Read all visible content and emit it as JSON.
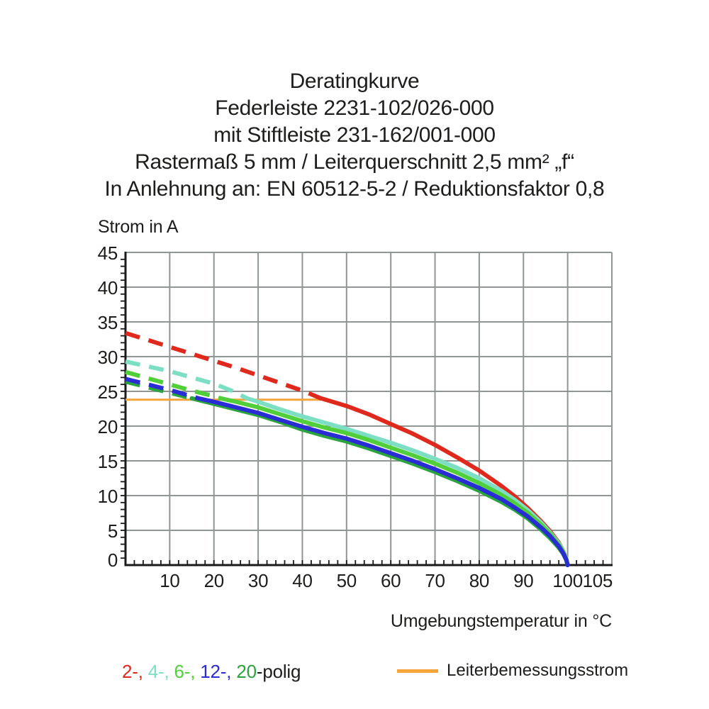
{
  "title": {
    "lines": [
      "Deratingkurve",
      "Federleiste 2231-102/026-000",
      "mit Stiftleiste 231-162/001-000",
      "Rastermaß 5 mm / Leiterquerschnitt 2,5 mm² „f“",
      "In Anlehnung an: EN 60512-5-2 / Reduktionsfaktor 0,8"
    ]
  },
  "legend": {
    "poles": {
      "parts": [
        {
          "text": "2-, ",
          "color": "#e0291d"
        },
        {
          "text": "4-, ",
          "color": "#7cdfc4"
        },
        {
          "text": "6-, ",
          "color": "#50cf3a"
        },
        {
          "text": "12-, ",
          "color": "#2a2cd6"
        },
        {
          "text": "20",
          "color": "#2ba33e"
        },
        {
          "text": "-polig",
          "color": "#1d1d1b"
        }
      ]
    },
    "rated": {
      "label": "Leiterbemessungsstrom",
      "color": "#f5a33b"
    }
  },
  "chart_data": {
    "type": "line",
    "title": "Deratingkurve",
    "xlabel": "Umgebungstemperatur in °C",
    "ylabel": "Strom in A",
    "xlim": [
      0,
      110
    ],
    "ylim": [
      0,
      45
    ],
    "grid": true,
    "grid_color": "#8f9694",
    "axis_color": "#1a1a1a",
    "x_ticks": [
      10,
      20,
      30,
      40,
      50,
      60,
      70,
      80,
      90,
      100,
      105
    ],
    "y_ticks": [
      0,
      5,
      10,
      15,
      20,
      25,
      30,
      35,
      40,
      45
    ],
    "x_grid": [
      10,
      20,
      30,
      40,
      50,
      60,
      70,
      80,
      90,
      100,
      110
    ],
    "y_grid": [
      5,
      10,
      15,
      20,
      25,
      30,
      35,
      40,
      45
    ],
    "x_minor_tick_step": 2,
    "y_minor_tick_step": 1,
    "rated_current_line": {
      "label": "Leiterbemessungsstrom",
      "current_a": 24,
      "y": 23.8,
      "x_from": 0,
      "x_to": 44.2,
      "color": "#f5a33b"
    },
    "series": [
      {
        "name": "2-polig",
        "color": "#e0291d",
        "dashed_until": 44.2,
        "points": [
          [
            0,
            33.4
          ],
          [
            5,
            32.4
          ],
          [
            10,
            31.4
          ],
          [
            15,
            30.4
          ],
          [
            20,
            29.4
          ],
          [
            25,
            28.4
          ],
          [
            30,
            27.3
          ],
          [
            35,
            26.2
          ],
          [
            40,
            25.1
          ],
          [
            44.2,
            24.0
          ],
          [
            50,
            22.9
          ],
          [
            55,
            21.7
          ],
          [
            60,
            20.3
          ],
          [
            65,
            18.9
          ],
          [
            70,
            17.3
          ],
          [
            75,
            15.5
          ],
          [
            80,
            13.6
          ],
          [
            85,
            11.4
          ],
          [
            88,
            9.9
          ],
          [
            91,
            8.2
          ],
          [
            94,
            6.3
          ],
          [
            96,
            4.9
          ],
          [
            98,
            3.2
          ],
          [
            99,
            2.0
          ],
          [
            99.7,
            0.9
          ],
          [
            100,
            0
          ]
        ]
      },
      {
        "name": "4-polig",
        "color": "#7cdfc4",
        "dashed_until": 27.5,
        "points": [
          [
            0,
            29.3
          ],
          [
            5,
            28.6
          ],
          [
            10,
            27.9
          ],
          [
            15,
            27.0
          ],
          [
            20,
            26.1
          ],
          [
            24,
            25.1
          ],
          [
            27.5,
            24.0
          ],
          [
            30,
            23.5
          ],
          [
            35,
            22.4
          ],
          [
            40,
            21.4
          ],
          [
            45,
            20.5
          ],
          [
            50,
            19.6
          ],
          [
            55,
            18.6
          ],
          [
            60,
            17.6
          ],
          [
            65,
            16.5
          ],
          [
            70,
            15.3
          ],
          [
            75,
            14.0
          ],
          [
            80,
            12.5
          ],
          [
            85,
            10.7
          ],
          [
            88,
            9.4
          ],
          [
            91,
            7.9
          ],
          [
            94,
            6.1
          ],
          [
            96,
            4.7
          ],
          [
            98,
            3.1
          ],
          [
            99,
            2.0
          ],
          [
            99.7,
            0.9
          ],
          [
            100,
            0
          ]
        ]
      },
      {
        "name": "6-polig",
        "color": "#50cf3a",
        "dashed_until": 21.5,
        "points": [
          [
            0,
            27.8
          ],
          [
            5,
            26.9
          ],
          [
            10,
            26.0
          ],
          [
            15,
            25.1
          ],
          [
            20,
            24.3
          ],
          [
            21.5,
            24.0
          ],
          [
            25,
            23.5
          ],
          [
            30,
            22.7
          ],
          [
            35,
            21.7
          ],
          [
            40,
            20.7
          ],
          [
            45,
            19.8
          ],
          [
            50,
            19.0
          ],
          [
            55,
            18.0
          ],
          [
            60,
            16.9
          ],
          [
            65,
            15.8
          ],
          [
            70,
            14.6
          ],
          [
            75,
            13.3
          ],
          [
            80,
            11.8
          ],
          [
            85,
            10.1
          ],
          [
            88,
            8.9
          ],
          [
            91,
            7.5
          ],
          [
            94,
            5.8
          ],
          [
            96,
            4.5
          ],
          [
            98,
            2.9
          ],
          [
            99,
            1.9
          ],
          [
            99.7,
            0.8
          ],
          [
            100,
            0
          ]
        ]
      },
      {
        "name": "20-polig",
        "color": "#2ba33e",
        "dashed_until": 15,
        "points": [
          [
            0,
            26.4
          ],
          [
            5,
            25.6
          ],
          [
            10,
            24.8
          ],
          [
            15,
            24.0
          ],
          [
            20,
            23.2
          ],
          [
            25,
            22.4
          ],
          [
            30,
            21.6
          ],
          [
            35,
            20.6
          ],
          [
            40,
            19.5
          ],
          [
            45,
            18.6
          ],
          [
            50,
            17.8
          ],
          [
            55,
            16.8
          ],
          [
            60,
            15.7
          ],
          [
            65,
            14.6
          ],
          [
            70,
            13.4
          ],
          [
            75,
            12.1
          ],
          [
            80,
            10.7
          ],
          [
            85,
            9.1
          ],
          [
            88,
            8.0
          ],
          [
            91,
            6.7
          ],
          [
            94,
            5.1
          ],
          [
            96,
            3.9
          ],
          [
            98,
            2.5
          ],
          [
            99,
            1.6
          ],
          [
            99.7,
            0.7
          ],
          [
            100,
            0
          ]
        ]
      },
      {
        "name": "12-polig",
        "color": "#2a2cd6",
        "dashed_until": 16.5,
        "points": [
          [
            0,
            26.8
          ],
          [
            5,
            26.0
          ],
          [
            10,
            25.2
          ],
          [
            16.5,
            24.0
          ],
          [
            20,
            23.5
          ],
          [
            25,
            22.7
          ],
          [
            30,
            21.9
          ],
          [
            35,
            20.9
          ],
          [
            40,
            19.9
          ],
          [
            45,
            19.0
          ],
          [
            50,
            18.2
          ],
          [
            55,
            17.2
          ],
          [
            60,
            16.1
          ],
          [
            65,
            15.0
          ],
          [
            70,
            13.8
          ],
          [
            75,
            12.5
          ],
          [
            80,
            11.1
          ],
          [
            85,
            9.5
          ],
          [
            88,
            8.3
          ],
          [
            91,
            7.0
          ],
          [
            94,
            5.4
          ],
          [
            96,
            4.2
          ],
          [
            98,
            2.7
          ],
          [
            99,
            1.7
          ],
          [
            99.7,
            0.75
          ],
          [
            100,
            0
          ]
        ]
      }
    ],
    "legend_position": "bottom"
  }
}
